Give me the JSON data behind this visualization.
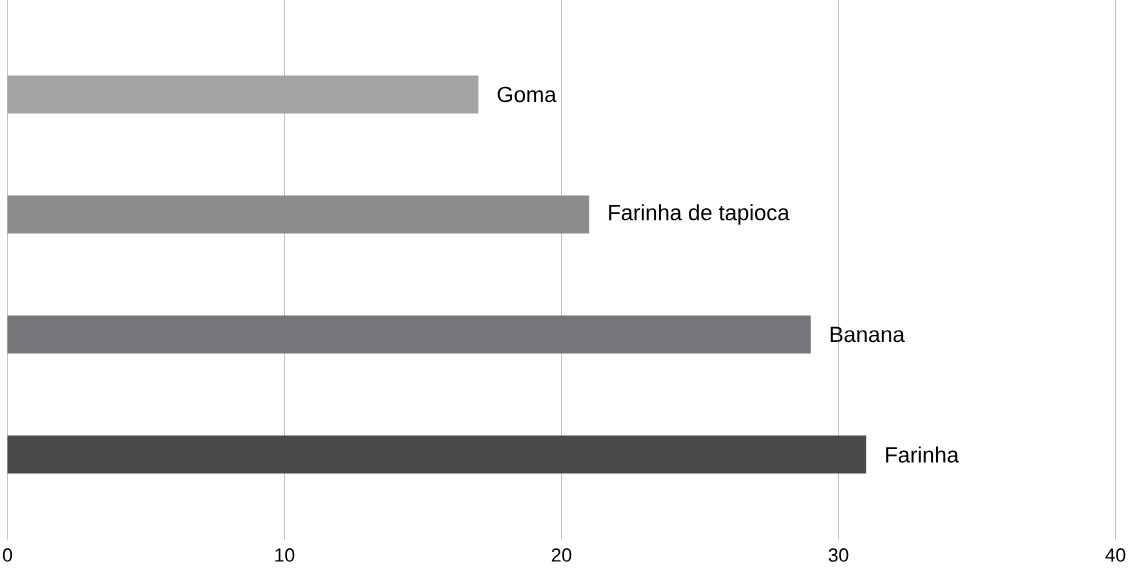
{
  "chart_data": {
    "type": "bar",
    "orientation": "horizontal",
    "categories": [
      "Goma",
      "Farinha de tapioca",
      "Banana",
      "Farinha"
    ],
    "values": [
      17,
      21,
      29,
      31
    ],
    "colors": [
      "#a3a3a5",
      "#8c8c8e",
      "#76767a",
      "#4a4a4c"
    ],
    "xlim": [
      0,
      40
    ],
    "xticks": [
      0,
      10,
      20,
      30,
      40
    ],
    "grid": "x"
  }
}
